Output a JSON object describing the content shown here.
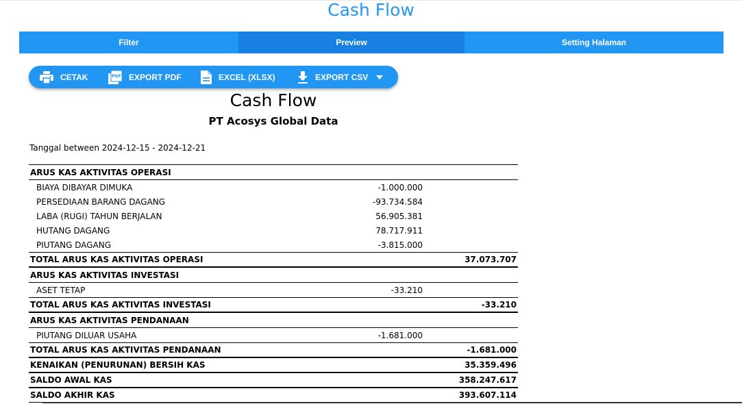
{
  "page": {
    "title": "Cash Flow"
  },
  "tabs": [
    {
      "label": "Filter"
    },
    {
      "label": "Preview"
    },
    {
      "label": "Setting Halaman"
    }
  ],
  "toolbar": {
    "print_label": "CETAK",
    "pdf_label": "EXPORT PDF",
    "excel_label": "EXCEL (XLSX)",
    "csv_label": "EXPORT CSV"
  },
  "report": {
    "title": "Cash Flow",
    "company": "PT Acosys Global Data",
    "period": "Tanggal between 2024-12-15 - 2024-12-21",
    "sections": {
      "operasi": {
        "header": "ARUS KAS AKTIVITAS OPERASI",
        "items": [
          {
            "label": "BIAYA DIBAYAR DIMUKA",
            "amount": "-1.000.000"
          },
          {
            "label": "PERSEDIAAN BARANG DAGANG",
            "amount": "-93.734.584"
          },
          {
            "label": "LABA (RUGI) TAHUN BERJALAN",
            "amount": "56.905.381"
          },
          {
            "label": "HUTANG DAGANG",
            "amount": "78.717.911"
          },
          {
            "label": "PIUTANG DAGANG",
            "amount": "-3.815.000"
          }
        ],
        "total_label": "TOTAL ARUS KAS AKTIVITAS OPERASI",
        "total": "37.073.707"
      },
      "investasi": {
        "header": "ARUS KAS AKTIVITAS INVESTASI",
        "items": [
          {
            "label": "ASET TETAP",
            "amount": "-33.210"
          }
        ],
        "total_label": "TOTAL ARUS KAS AKTIVITAS INVESTASI",
        "total": "-33.210"
      },
      "pendanaan": {
        "header": "ARUS KAS AKTIVITAS PENDANAAN",
        "items": [
          {
            "label": "PIUTANG DILUAR USAHA",
            "amount": "-1.681.000"
          }
        ],
        "total_label": "TOTAL ARUS KAS AKTIVITAS PENDANAAN",
        "total": "-1.681.000"
      }
    },
    "summary": [
      {
        "label": "KENAIKAN (PENURUNAN) BERSIH KAS",
        "value": "35.359.496"
      },
      {
        "label": "SALDO AWAL KAS",
        "value": "358.247.617"
      },
      {
        "label": "SALDO AKHIR KAS",
        "value": "393.607.114"
      }
    ]
  }
}
